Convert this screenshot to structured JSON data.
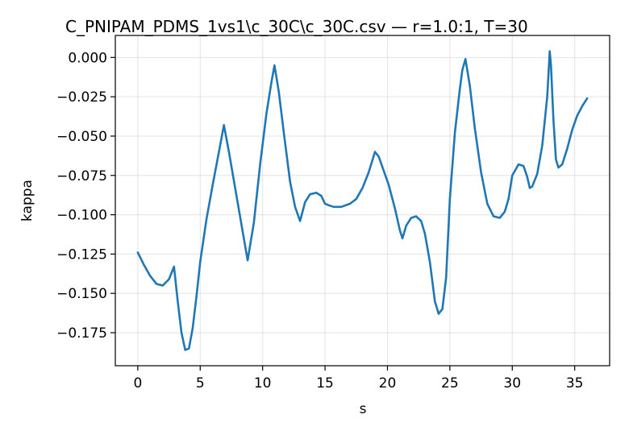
{
  "chart_data": {
    "type": "line",
    "title": "C_PNIPAM_PDMS_1vs1\\c_30C\\c_30C.csv — r=1.0:1, T=30",
    "xlabel": "s",
    "ylabel": "kappa",
    "xlim": [
      -1.8,
      37.8
    ],
    "ylim": [
      -0.196,
      0.014
    ],
    "xticks": [
      0,
      5,
      10,
      15,
      20,
      25,
      30,
      35
    ],
    "yticks": [
      0.0,
      -0.025,
      -0.05,
      -0.075,
      -0.1,
      -0.125,
      -0.15,
      -0.175
    ],
    "ytick_labels": [
      "0.000",
      "−0.025",
      "−0.050",
      "−0.075",
      "−0.100",
      "−0.125",
      "−0.150",
      "−0.175"
    ],
    "grid": true,
    "colors": {
      "line": "#1f77b4"
    },
    "series": [
      {
        "x": [
          0,
          0.5,
          1.0,
          1.5,
          2.0,
          2.5,
          2.9,
          3.2,
          3.5,
          3.8,
          4.1,
          4.4,
          4.7,
          5.0,
          5.5,
          6.0,
          6.5,
          6.9,
          7.3,
          7.8,
          8.3,
          8.8,
          9.3,
          9.8,
          10.3,
          10.7,
          10.95,
          11.3,
          11.7,
          12.2,
          12.6,
          13.0,
          13.4,
          13.8,
          14.3,
          14.7,
          15.0,
          15.3,
          15.7,
          16.3,
          17.0,
          17.5,
          18.0,
          18.5,
          19.0,
          19.3,
          19.7,
          20.1,
          20.6,
          21.0,
          21.2,
          21.5,
          21.9,
          22.3,
          22.7,
          23.0,
          23.4,
          23.8,
          24.1,
          24.4,
          24.7,
          25.0,
          25.4,
          25.8,
          26.0,
          26.25,
          26.6,
          27.0,
          27.5,
          28.0,
          28.5,
          29.0,
          29.4,
          29.7,
          30.0,
          30.5,
          30.9,
          31.2,
          31.4,
          31.6,
          32.0,
          32.4,
          32.8,
          33.0,
          33.1,
          33.3,
          33.5,
          33.7,
          34.0,
          34.4,
          34.8,
          35.2,
          35.6,
          36.0
        ],
        "y": [
          -0.124,
          -0.132,
          -0.139,
          -0.144,
          -0.145,
          -0.141,
          -0.133,
          -0.155,
          -0.175,
          -0.186,
          -0.185,
          -0.172,
          -0.152,
          -0.13,
          -0.103,
          -0.081,
          -0.06,
          -0.043,
          -0.06,
          -0.083,
          -0.106,
          -0.129,
          -0.105,
          -0.068,
          -0.036,
          -0.016,
          -0.005,
          -0.022,
          -0.048,
          -0.079,
          -0.095,
          -0.104,
          -0.092,
          -0.087,
          -0.086,
          -0.088,
          -0.093,
          -0.094,
          -0.095,
          -0.095,
          -0.093,
          -0.09,
          -0.083,
          -0.073,
          -0.06,
          -0.063,
          -0.072,
          -0.081,
          -0.096,
          -0.11,
          -0.115,
          -0.107,
          -0.102,
          -0.101,
          -0.104,
          -0.112,
          -0.13,
          -0.155,
          -0.163,
          -0.16,
          -0.14,
          -0.09,
          -0.048,
          -0.02,
          -0.008,
          -0.001,
          -0.018,
          -0.045,
          -0.073,
          -0.093,
          -0.101,
          -0.102,
          -0.098,
          -0.09,
          -0.075,
          -0.068,
          -0.069,
          -0.076,
          -0.083,
          -0.082,
          -0.074,
          -0.056,
          -0.025,
          0.004,
          -0.005,
          -0.04,
          -0.065,
          -0.07,
          -0.068,
          -0.058,
          -0.046,
          -0.037,
          -0.031,
          -0.026
        ]
      }
    ]
  }
}
